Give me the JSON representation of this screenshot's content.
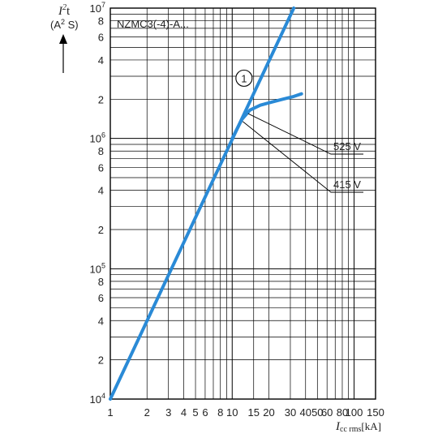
{
  "chart_data": {
    "type": "line",
    "title": "NZMC3(-4)-A...",
    "xaxis": {
      "scale": "log",
      "range": [
        1,
        150
      ],
      "label_var": "I",
      "label_sub": "cc rms",
      "label_unit": "[kA]",
      "tick_values": [
        1,
        2,
        3,
        4,
        5,
        6,
        8,
        10,
        15,
        20,
        30,
        40,
        50,
        60,
        80,
        100,
        150
      ],
      "tick_labels": [
        "1",
        "2",
        "3",
        "4",
        "5",
        "6",
        "8",
        "10",
        "15",
        "20",
        "30",
        "40",
        "50",
        "60",
        "80",
        "100",
        "150"
      ]
    },
    "yaxis": {
      "scale": "log",
      "range": [
        10000,
        10000000
      ],
      "label_var": "I",
      "label_sup": "2",
      "label_t": "t",
      "label_unit_open": "(A",
      "label_unit_sup": "2",
      "label_unit_close": " S)",
      "major_ticks": [
        {
          "value": 10000,
          "base": "10",
          "exp": "4"
        },
        {
          "value": 100000,
          "base": "10",
          "exp": "5"
        },
        {
          "value": 1000000,
          "base": "10",
          "exp": "6"
        },
        {
          "value": 10000000,
          "base": "10",
          "exp": "7"
        }
      ],
      "minor_tick_labels": [
        "2",
        "4",
        "6",
        "8"
      ]
    },
    "grid": true,
    "series": [
      {
        "key": "line1",
        "x": [
          1,
          32
        ],
        "y": [
          10000,
          10000000
        ],
        "color": "#2a8ad6"
      },
      {
        "key": "line525",
        "x": [
          10,
          12,
          14,
          17,
          21,
          26,
          32,
          37
        ],
        "y": [
          1000000,
          1400000,
          1650000,
          1800000,
          1900000,
          2000000,
          2100000,
          2200000
        ],
        "color": "#2a8ad6"
      }
    ],
    "annotations": [
      {
        "text": "525 V",
        "target_x": 13.5,
        "target_y": 1550000
      },
      {
        "text": "415 V",
        "target_x": 12.2,
        "target_y": 1350000
      },
      {
        "text": "1",
        "x": 12.5,
        "y": 2900000,
        "circled": true
      }
    ]
  }
}
